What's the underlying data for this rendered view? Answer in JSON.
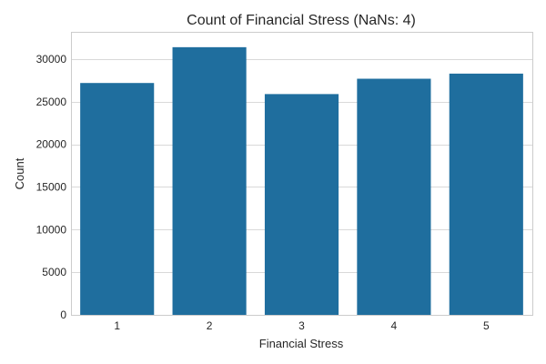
{
  "chart_data": {
    "type": "bar",
    "title": "Count of Financial Stress (NaNs: 4)",
    "xlabel": "Financial Stress",
    "ylabel": "Count",
    "categories": [
      "1",
      "2",
      "3",
      "4",
      "5"
    ],
    "values": [
      27200,
      31400,
      25900,
      27700,
      28300
    ],
    "ylim": [
      0,
      33200
    ],
    "yticks": [
      0,
      5000,
      10000,
      15000,
      20000,
      25000,
      30000
    ],
    "ytick_labels": [
      "0",
      "5000",
      "10000",
      "15000",
      "20000",
      "25000",
      "30000"
    ],
    "grid": "horizontal",
    "legend": "none",
    "bar_color": "#1f6e9e"
  }
}
